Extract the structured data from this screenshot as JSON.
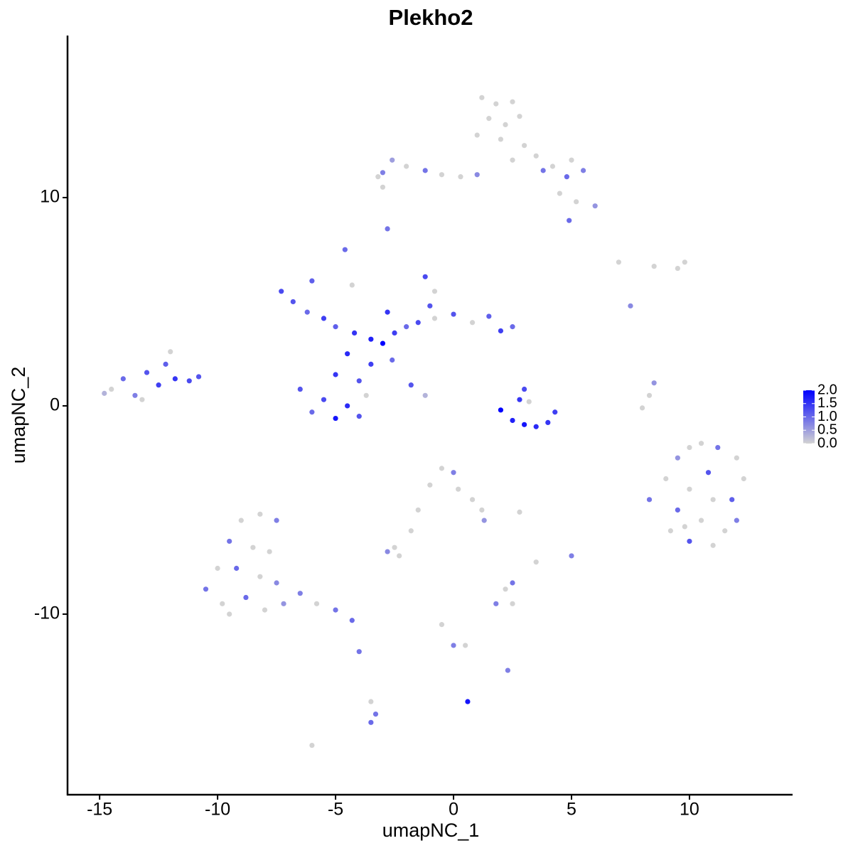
{
  "chart_data": {
    "type": "scatter",
    "title": "Plekho2",
    "xlabel": "umapNC_1",
    "ylabel": "umapNC_2",
    "x": [
      1.2,
      1.8,
      2.5,
      1.5,
      2.2,
      2.8,
      1.0,
      2.0,
      3.0,
      3.5,
      4.2,
      5.0,
      5.5,
      4.8,
      4.5,
      5.2,
      6.0,
      4.9,
      2.5,
      3.8,
      -3.0,
      -2.6,
      -2.0,
      -1.2,
      -0.5,
      0.3,
      1.0,
      -3.2,
      -2.8,
      -3.0,
      -14.5,
      -14.0,
      -13.5,
      -13.0,
      -12.5,
      -12.2,
      -11.8,
      -11.2,
      -12.0,
      -13.2,
      -10.8,
      -14.8,
      -7.3,
      -6.8,
      -6.2,
      -5.5,
      -5.0,
      -4.2,
      -3.5,
      -3.0,
      -2.5,
      -2.0,
      -1.5,
      -0.8,
      0,
      0.8,
      1.5,
      2.0,
      2.5,
      -1.2,
      -0.8,
      -1.0,
      -3.5,
      -4.0,
      -5.0,
      -5.5,
      -4.5,
      -4.0,
      -6.0,
      -5.0,
      -3.7,
      -2.6,
      -1.8,
      -1.2,
      -4.6,
      -4.3,
      -6.0,
      -2.8,
      -4.5,
      -6.5,
      2.0,
      2.5,
      3.0,
      3.5,
      4.0,
      4.3,
      3.0,
      3.2,
      2.8,
      9.0,
      9.5,
      10,
      10.5,
      11.2,
      12,
      12.3,
      11.8,
      10.8,
      10,
      9.5,
      10.5,
      11.5,
      12,
      9.2,
      10,
      11,
      8.3,
      11,
      9.8,
      -9.0,
      -8.2,
      -7.5,
      -9.5,
      -8.5,
      -7.8,
      -10.0,
      -9.2,
      -8.2,
      -7.5,
      -10.5,
      -9.8,
      -8.8,
      -8.0,
      -7.2,
      -6.5,
      -5.8,
      -5.0,
      -4.3,
      -9.5,
      -1.0,
      -0.5,
      0,
      0.2,
      0.8,
      1.2,
      1.3,
      -1.5,
      -1.8,
      -2.5,
      -2.8,
      -2.3,
      2.2,
      2.5,
      1.8,
      2.5,
      -0.5,
      0,
      0.5,
      2.3,
      0.6,
      -3.5,
      -3.5,
      -3.3,
      -6.0,
      -4.0,
      5.0,
      3.5,
      2.8,
      8.0,
      8.3,
      8.5,
      7.5,
      7.0,
      8.5,
      9.5,
      9.8
    ],
    "y": [
      14.8,
      14.5,
      14.6,
      13.8,
      13.5,
      13.9,
      13.0,
      12.8,
      12.5,
      12.0,
      11.5,
      11.8,
      11.3,
      11.0,
      10.2,
      9.8,
      9.6,
      8.9,
      11.8,
      11.3,
      11.2,
      11.8,
      11.5,
      11.3,
      11.1,
      11.0,
      11.1,
      11.0,
      8.5,
      10.5,
      0.8,
      1.3,
      0.5,
      1.6,
      1.0,
      2.0,
      1.3,
      1.2,
      2.6,
      0.3,
      1.4,
      0.6,
      5.5,
      5.0,
      4.5,
      4.2,
      3.8,
      3.5,
      3.2,
      3.0,
      3.5,
      3.8,
      4.0,
      4.2,
      4.4,
      4.0,
      4.3,
      3.6,
      3.8,
      6.2,
      5.5,
      4.8,
      2.0,
      1.2,
      1.5,
      0.3,
      0.0,
      -0.5,
      -0.3,
      -0.6,
      0.5,
      2.2,
      1.0,
      0.5,
      7.5,
      5.8,
      6.0,
      4.5,
      2.5,
      0.8,
      -0.2,
      -0.7,
      -0.9,
      -1.0,
      -0.8,
      -0.3,
      0.8,
      0.2,
      0.3,
      -3.5,
      -2.5,
      -2.0,
      -1.8,
      -2.0,
      -2.5,
      -3.5,
      -4.5,
      -3.2,
      -4.0,
      -5.0,
      -5.5,
      -6.0,
      -5.5,
      -6.0,
      -6.5,
      -6.7,
      -4.5,
      -4.5,
      -5.8,
      -5.5,
      -5.2,
      -5.5,
      -6.5,
      -6.8,
      -7.0,
      -7.8,
      -7.8,
      -8.2,
      -8.5,
      -8.8,
      -9.5,
      -9.2,
      -9.8,
      -9.5,
      -9.0,
      -9.5,
      -9.8,
      -10.3,
      -10.0,
      -3.8,
      -3.0,
      -3.2,
      -4.0,
      -4.5,
      -5.0,
      -5.5,
      -5.0,
      -6.0,
      -6.8,
      -7.0,
      -7.2,
      -8.8,
      -9.5,
      -9.5,
      -8.5,
      -10.5,
      -11.5,
      -11.5,
      -12.7,
      -14.2,
      -14.2,
      -15.2,
      -14.8,
      -16.3,
      -11.8,
      -7.2,
      -7.5,
      -5.1,
      -0.1,
      0.5,
      1.1,
      4.8,
      6.9,
      6.7,
      6.6,
      6.9
    ],
    "values": [
      0,
      0,
      0,
      0,
      0,
      0,
      0,
      0,
      0,
      0,
      0,
      0,
      0.8,
      1.0,
      0,
      0,
      0.6,
      1.0,
      0,
      0.9,
      0.8,
      0.5,
      0,
      0.9,
      0,
      0,
      0.7,
      0,
      0.9,
      0,
      0,
      1.0,
      0.8,
      1.2,
      1.4,
      1.1,
      1.5,
      1.3,
      0,
      0,
      1.2,
      0.3,
      1.3,
      1.2,
      1.0,
      1.4,
      1.1,
      1.5,
      1.7,
      2.0,
      1.4,
      1.0,
      1.3,
      0,
      1.2,
      0,
      1.1,
      1.4,
      1.0,
      1.3,
      0,
      1.2,
      1.4,
      1.2,
      1.5,
      1.3,
      1.6,
      1.2,
      1.0,
      1.8,
      0,
      1.0,
      1.2,
      0.3,
      1.0,
      0,
      1.1,
      1.5,
      1.6,
      1.2,
      2.0,
      1.7,
      1.8,
      1.6,
      1.5,
      1.4,
      1.3,
      0,
      1.5,
      0,
      0.6,
      0,
      0,
      0.9,
      0,
      0,
      1.1,
      1.2,
      0,
      1.0,
      0,
      0,
      0.8,
      0,
      1.2,
      0,
      0.9,
      0,
      0,
      0,
      0,
      0.8,
      0.9,
      0,
      0,
      0,
      1.0,
      0,
      0.7,
      0.9,
      0,
      1.0,
      0,
      0.6,
      0.8,
      0,
      0.9,
      1.0,
      0,
      0,
      0,
      0.8,
      0,
      0,
      0,
      0.6,
      0,
      0,
      0,
      0.7,
      0,
      0,
      0,
      0.8,
      0.9,
      0,
      0.8,
      0,
      0.8,
      1.8,
      0,
      1.0,
      0.9,
      0,
      0.9,
      0.8,
      0,
      0,
      0,
      0,
      0.6,
      0.7,
      0,
      0,
      0,
      0
    ],
    "color_low": "#d3d3d3",
    "color_high": "#0000ff",
    "clim": [
      0,
      2
    ],
    "cticks": [
      {
        "value": 2,
        "label": "2.0"
      },
      {
        "value": 1.5,
        "label": "1.5"
      },
      {
        "value": 1,
        "label": "1.0"
      },
      {
        "value": 0.5,
        "label": "0.5"
      },
      {
        "value": 0,
        "label": "0.0"
      }
    ],
    "xlim": [
      -16.36,
      14.37
    ],
    "xticks": [
      -15,
      -10,
      -5,
      0,
      5,
      10
    ],
    "ylim": [
      -18.67,
      17.78
    ],
    "yticks": [
      -10,
      0,
      10
    ]
  }
}
